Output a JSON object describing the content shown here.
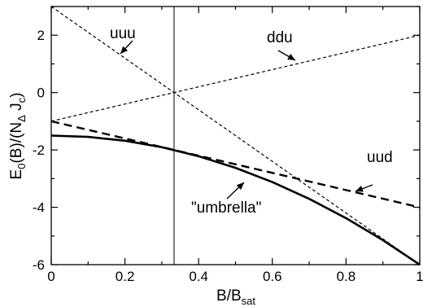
{
  "chart_data": {
    "type": "line",
    "xlabel": "B/B",
    "xlabel_sub": "sat",
    "ylabel": "E",
    "ylabel_parts": [
      "E",
      "0",
      "(B)/(N",
      "Δ",
      " J",
      "c",
      ")"
    ],
    "xlim": [
      0,
      1
    ],
    "ylim": [
      -6,
      3
    ],
    "x_ticks": [
      0,
      0.2,
      0.4,
      0.6,
      0.8,
      1
    ],
    "x_tick_labels": [
      "0",
      "0.2",
      "0.4",
      "0.6",
      "0.8",
      "1"
    ],
    "y_ticks": [
      -6,
      -4,
      -2,
      0,
      2
    ],
    "y_tick_labels": [
      "-6",
      "-4",
      "-2",
      "0",
      "2"
    ],
    "grid": false,
    "vertical_line_x": 0.3333,
    "series": [
      {
        "name": "uuu",
        "style": "dashed-thin",
        "x": [
          0,
          1
        ],
        "y": [
          3,
          -6
        ]
      },
      {
        "name": "ddu",
        "style": "dashed-thin",
        "x": [
          0,
          1
        ],
        "y": [
          -1,
          2
        ]
      },
      {
        "name": "uud",
        "style": "dashed-thick",
        "x": [
          0,
          1
        ],
        "y": [
          -1,
          -4
        ]
      },
      {
        "name": "\"umbrella\"",
        "style": "solid-thick",
        "x": [
          0,
          0.1,
          0.2,
          0.3,
          0.4,
          0.5,
          0.6,
          0.7,
          0.8,
          0.9,
          1.0
        ],
        "y": [
          -1.5,
          -1.545,
          -1.68,
          -1.905,
          -2.22,
          -2.625,
          -3.12,
          -3.705,
          -4.38,
          -5.145,
          -6.0
        ]
      }
    ],
    "annotations": [
      {
        "text": "uuu",
        "series": "uuu"
      },
      {
        "text": "ddu",
        "series": "ddu"
      },
      {
        "text": "uud",
        "series": "uud"
      },
      {
        "text": "\"umbrella\"",
        "series": "\"umbrella\""
      }
    ]
  }
}
